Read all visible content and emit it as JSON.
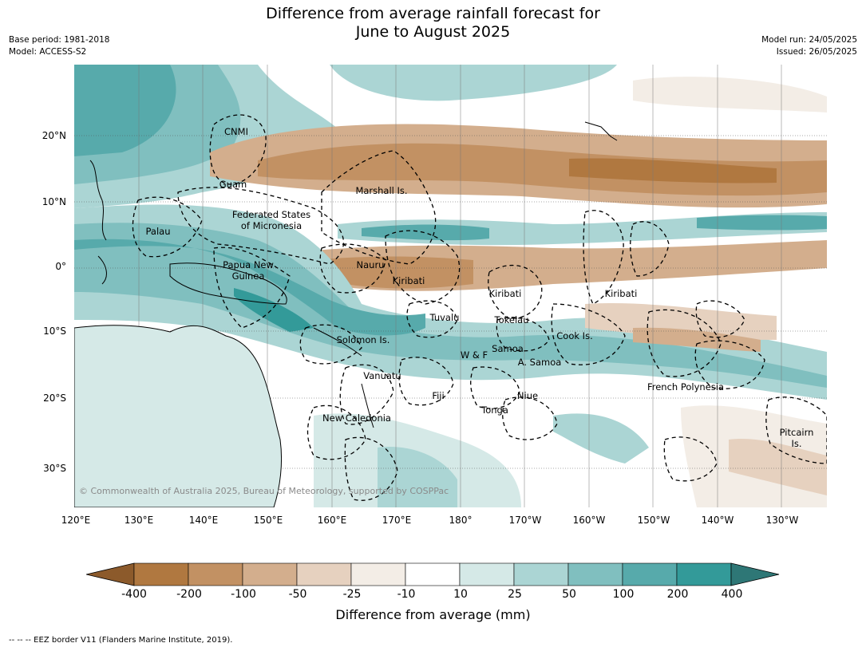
{
  "title_line1": "Difference from average rainfall forecast for",
  "title_line2": "June to August 2025",
  "meta_left": [
    "Base period: 1981-2018",
    "Model: ACCESS-S2"
  ],
  "meta_right": [
    "Model run: 24/05/2025",
    "Issued: 26/05/2025"
  ],
  "lon_labels": [
    "120°E",
    "130°E",
    "140°E",
    "150°E",
    "160°E",
    "170°E",
    "180°",
    "170°W",
    "160°W",
    "150°W",
    "140°W",
    "130°W"
  ],
  "lat_labels": [
    "20°N",
    "10°N",
    "0°",
    "10°S",
    "20°S",
    "30°S"
  ],
  "places": [
    {
      "name": "CNMI"
    },
    {
      "name": "Guam"
    },
    {
      "name": "Marshall Is."
    },
    {
      "name": "Federated States\nof Micronesia"
    },
    {
      "name": "Palau"
    },
    {
      "name": "Papua New\nGuinea"
    },
    {
      "name": "Nauru"
    },
    {
      "name": "Kiribati"
    },
    {
      "name": "Kiribati"
    },
    {
      "name": "Kiribati"
    },
    {
      "name": "Tuvalu"
    },
    {
      "name": "Tokelau"
    },
    {
      "name": "Cook Is."
    },
    {
      "name": "Solomon Is."
    },
    {
      "name": "Samoa"
    },
    {
      "name": "W & F"
    },
    {
      "name": "A. Samoa"
    },
    {
      "name": "Vanuatu"
    },
    {
      "name": "Fiji"
    },
    {
      "name": "Niue"
    },
    {
      "name": "Tonga"
    },
    {
      "name": "French Polynesia"
    },
    {
      "name": "New Caledonia"
    },
    {
      "name": "Pitcairn\nIs."
    }
  ],
  "copyright": "© Commonwealth of Australia 2025, Bureau of Meteorology, supported by COSPPac",
  "colorbar": {
    "title": "Difference from average (mm)",
    "ticks": [
      "-400",
      "-200",
      "-100",
      "-50",
      "-25",
      "-10",
      "10",
      "25",
      "50",
      "100",
      "200",
      "400"
    ],
    "colors": [
      "#8c5a2b",
      "#b07840",
      "#c29163",
      "#d3ae8d",
      "#e6d1bf",
      "#f3ede6",
      "#ffffff",
      "#d5e9e7",
      "#abd5d4",
      "#80bfbf",
      "#57aaab",
      "#339a99",
      "#2e7776"
    ]
  },
  "footnote": "--  --  -- EEZ border V11 (Flanders Marine Institute, 2019)."
}
